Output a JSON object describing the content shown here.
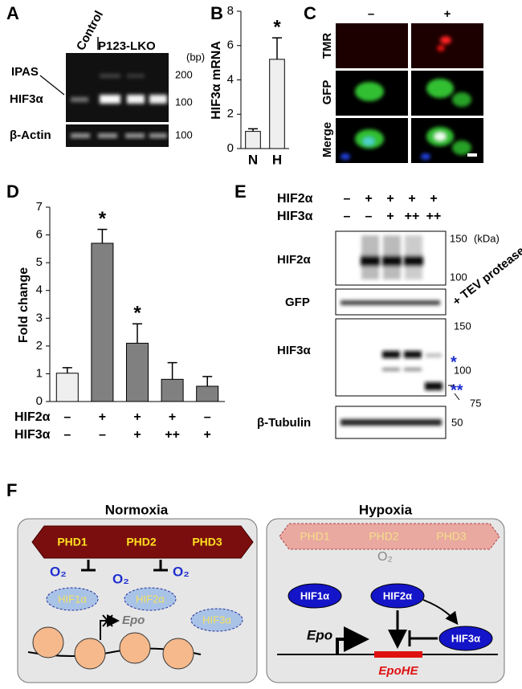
{
  "chart_data": [
    {
      "type": "bar",
      "panel": "B",
      "y_label": "HIF3α mRNA",
      "categories": [
        "N",
        "H"
      ],
      "values": [
        1.0,
        5.2
      ],
      "errors": [
        0.15,
        1.25
      ],
      "annotations": [
        null,
        "*"
      ],
      "color": "#efefef",
      "ylim": [
        0,
        8
      ],
      "yticks": [
        0,
        2,
        4,
        6,
        8
      ]
    },
    {
      "type": "bar",
      "panel": "D",
      "y_label": "Fold change",
      "values": [
        1.02,
        5.7,
        2.1,
        0.8,
        0.55
      ],
      "errors": [
        0.2,
        0.5,
        0.7,
        0.6,
        0.35
      ],
      "annotations": [
        null,
        "*",
        "*",
        null,
        null
      ],
      "colors": [
        "#efefef",
        "#808080",
        "#808080",
        "#808080",
        "#808080"
      ],
      "conditions": [
        {
          "name": "HIF2α",
          "values": [
            "–",
            "+",
            "+",
            "+",
            "–"
          ]
        },
        {
          "name": "HIF3α",
          "values": [
            "–",
            "–",
            "+",
            "++",
            "+"
          ]
        }
      ],
      "ylim": [
        0,
        7
      ],
      "yticks": [
        0,
        1,
        2,
        3,
        4,
        5,
        6,
        7
      ]
    }
  ],
  "gel_A": {
    "panel": "A",
    "control": "Control",
    "treated": "P123-LKO",
    "bands": [
      "IPAS",
      "HIF3α",
      "β-Actin"
    ],
    "unit": "(bp)",
    "markers": [
      "200",
      "100",
      "100"
    ]
  },
  "microscopy_C": {
    "panel": "C",
    "columns": [
      "–",
      "+"
    ],
    "rows": [
      "TMR",
      "GFP",
      "Merge"
    ]
  },
  "blot_E": {
    "panel": "E",
    "conditions": [
      {
        "name": "HIF2α",
        "values": [
          "–",
          "+",
          "+",
          "+",
          "+"
        ]
      },
      {
        "name": "HIF3α",
        "values": [
          "–",
          "–",
          "+",
          "++",
          "++"
        ]
      }
    ],
    "blots": [
      "HIF2α",
      "GFP",
      "HIF3α",
      "β-Tubulin"
    ],
    "unit": "(kDa)",
    "markers": [
      "150",
      "100",
      "150",
      "100",
      "75",
      "50"
    ],
    "treatment": "+ TEV protease",
    "band_marks": [
      "*",
      "**"
    ]
  },
  "model_F": {
    "panel": "F",
    "normoxia": {
      "title": "Normoxia",
      "enzymes": [
        "PHD1",
        "PHD2",
        "PHD3"
      ],
      "oxygen": [
        "O₂",
        "O₂",
        "O₂"
      ],
      "factors": [
        "HIF1α",
        "HIF2α",
        "HIF3α"
      ],
      "gene": "Epo"
    },
    "hypoxia": {
      "title": "Hypoxia",
      "enzymes": [
        "PHD1",
        "PHD2",
        "PHD3"
      ],
      "oxygen": "O₂",
      "factors": [
        "HIF1α",
        "HIF2α",
        "HIF3α"
      ],
      "gene": "Epo",
      "element": "EpoHE"
    }
  }
}
